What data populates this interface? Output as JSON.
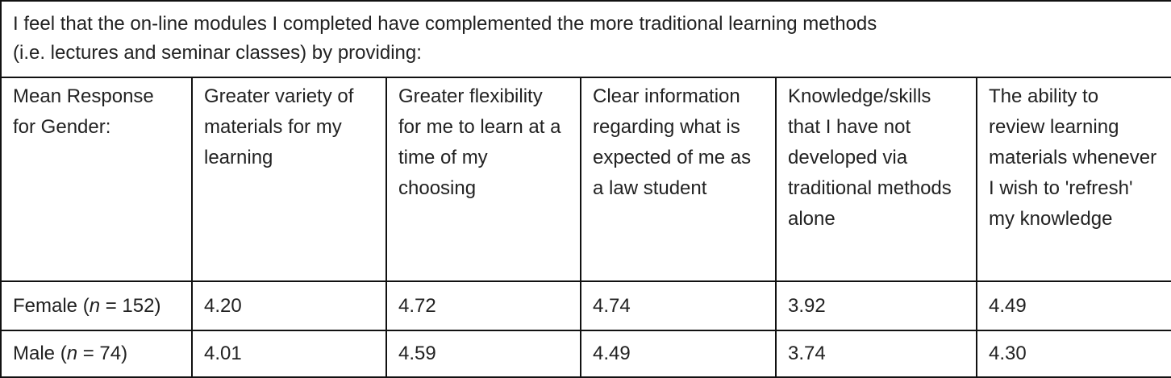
{
  "table": {
    "title_lines": [
      "I feel that the on-line modules I completed have complemented the more traditional learning methods",
      "(i.e. lectures and seminar classes) by providing:"
    ],
    "header": [
      "Mean Response for Gender:",
      "Greater variety of materials for my learning",
      "Greater flexibility for me to learn at a time of my choosing",
      "Clear information regarding what is expected of me as a law student",
      "Knowledge/skills that I have not developed via traditional methods alone",
      "The ability to review learning materials whenever I wish to 'refresh' my knowledge"
    ],
    "rows": [
      [
        "Female (n = 152)",
        "4.20",
        "4.72",
        "4.74",
        "3.92",
        "4.49"
      ],
      [
        "Male (n = 74)",
        "4.01",
        "4.59",
        "4.49",
        "3.74",
        "4.30"
      ]
    ]
  }
}
